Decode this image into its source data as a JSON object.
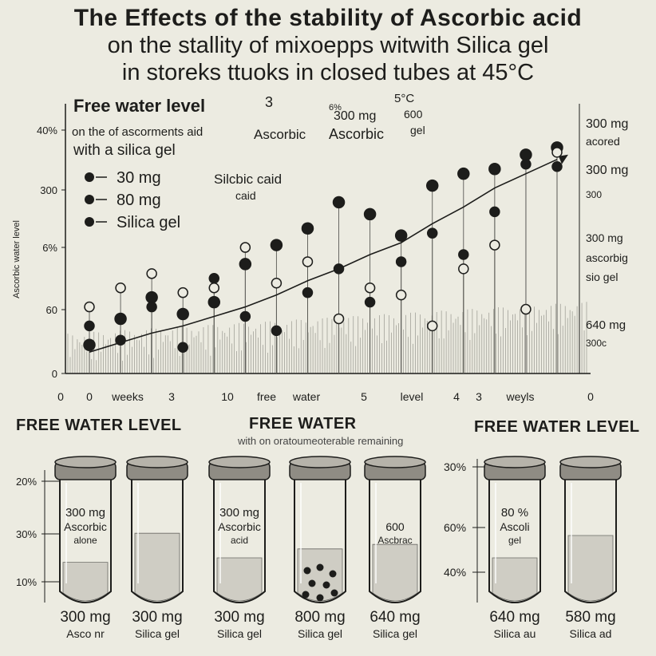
{
  "title": {
    "line1": "The Effects of the stability of Ascorbic acid",
    "line2": "on the stallity of mixoepps witwith Silica gel",
    "line3": "in storeks ttuoks in closed tubes at 45°C"
  },
  "chart_data": {
    "type": "scatter",
    "panel_title": "Free water level",
    "panel_title_num": "3",
    "subtitle_line1": "on the of ascorments aid",
    "subtitle_line2": "with a silica gel",
    "legend": [
      {
        "label": "30 mg"
      },
      {
        "label": "80 mg"
      },
      {
        "label": "Silica gel"
      }
    ],
    "y_ticks": [
      "40%",
      "300",
      "6%",
      "60",
      "0"
    ],
    "ylabel": "Ascorbic water level",
    "x_ticks": [
      "0",
      "0",
      "weeks",
      "3",
      "10",
      "free",
      "water",
      "5",
      "level",
      "4",
      "3",
      "weyls",
      "0"
    ],
    "x": [
      0,
      1,
      2,
      3,
      4,
      5,
      6,
      7,
      8,
      9,
      10,
      11,
      12,
      13,
      14,
      15
    ],
    "trend": [
      9,
      13,
      17,
      20,
      24,
      28,
      33,
      39,
      44,
      50,
      55,
      63,
      70,
      78,
      84,
      90
    ],
    "series": [
      {
        "name": "30 mg",
        "values": [
          12,
          23,
          32,
          25,
          30,
          46,
          54,
          61,
          72,
          67,
          58,
          79,
          84,
          86,
          92,
          95
        ]
      },
      {
        "name": "80 mg",
        "values": [
          20,
          14,
          28,
          11,
          40,
          24,
          18,
          34,
          44,
          30,
          47,
          59,
          50,
          68,
          88,
          87
        ]
      },
      {
        "name": "Silica gel",
        "values": [
          28,
          36,
          42,
          34,
          36,
          53,
          38,
          47,
          23,
          36,
          33,
          20,
          44,
          54,
          27,
          93
        ]
      }
    ],
    "annotations": {
      "ascorbic_1": "Ascorbic",
      "ascorbic_2": "Ascorbic",
      "silcbic": "Silcbic caid",
      "caid": "caid",
      "mg300": "300 mg",
      "mg600": "600",
      "gel": "gel",
      "deg": "5°C",
      "pct": "6%"
    },
    "right_labels": [
      "300 mg",
      "acored",
      "300 mg",
      "300",
      "300 mg",
      "ascorbig",
      "sio gel",
      "640 mg",
      "300c"
    ],
    "ylim": [
      0,
      100
    ]
  },
  "tubes_section": {
    "header_left": "FREE WATER LEVEL",
    "header_mid": "FREE WATER",
    "header_mid_sub": "with on oratoumeoterable remaining",
    "header_right": "FREE WATER LEVEL",
    "left_scale": [
      "20%",
      "30%",
      "10%"
    ],
    "right_scale": [
      "30%",
      "60%",
      "40%"
    ],
    "tubes": [
      {
        "label_top": "300 mg",
        "label_mid": "Ascorbic",
        "label_bot": "alone",
        "fill": 0.36,
        "mg": "300 mg",
        "name": "Asco nr"
      },
      {
        "label_top": "",
        "label_mid": "",
        "label_bot": "",
        "fill": 0.62,
        "mg": "300 mg",
        "name": "Silica gel"
      },
      {
        "label_top": "300 mg",
        "label_mid": "Ascorbic",
        "label_bot": "acid",
        "fill": 0.4,
        "mg": "300 mg",
        "name": "Silica gel"
      },
      {
        "label_top": "",
        "label_mid": "",
        "label_bot": "",
        "fill": 0.48,
        "mg": "800 mg",
        "name": "Silica gel"
      },
      {
        "label_top": "",
        "label_mid": "600",
        "label_bot": "Ascbrac",
        "fill": 0.52,
        "mg": "640 mg",
        "name": "Silica gel"
      },
      {
        "label_top": "80 %",
        "label_mid": "Ascoli",
        "label_bot": "gel",
        "fill": 0.4,
        "mg": "640 mg",
        "name": "Silica au"
      },
      {
        "label_top": "",
        "label_mid": "",
        "label_bot": "",
        "fill": 0.6,
        "mg": "580 mg",
        "name": "Silica ad"
      }
    ]
  }
}
